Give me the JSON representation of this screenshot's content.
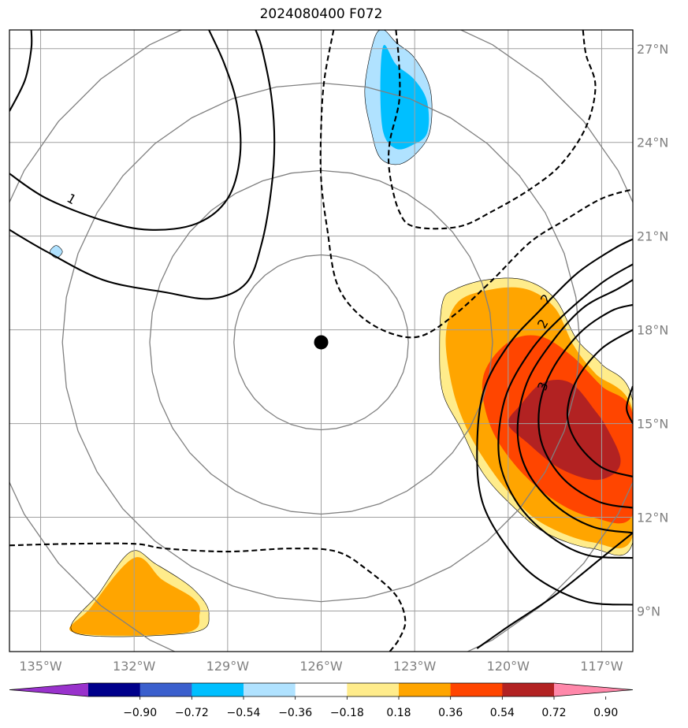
{
  "title": "2024080400 F072",
  "map": {
    "lon_range": [
      -136.0,
      -116.0
    ],
    "lat_range": [
      7.7,
      27.6
    ],
    "lon_ticks": [
      {
        "value": -135,
        "label": "135°W"
      },
      {
        "value": -132,
        "label": "132°W"
      },
      {
        "value": -129,
        "label": "129°W"
      },
      {
        "value": -126,
        "label": "126°W"
      },
      {
        "value": -123,
        "label": "123°W"
      },
      {
        "value": -120,
        "label": "120°W"
      },
      {
        "value": -117,
        "label": "117°W"
      }
    ],
    "lat_ticks": [
      {
        "value": 9,
        "label": "9°N"
      },
      {
        "value": 12,
        "label": "12°N"
      },
      {
        "value": 15,
        "label": "15°N"
      },
      {
        "value": 18,
        "label": "18°N"
      },
      {
        "value": 21,
        "label": "21°N"
      },
      {
        "value": 24,
        "label": "24°N"
      },
      {
        "value": 27,
        "label": "27°N"
      }
    ],
    "gridlines": true,
    "center": {
      "lon": -126.0,
      "lat": 17.6
    },
    "range_rings_deg": [
      2.8,
      5.5,
      8.3,
      11.0
    ],
    "contour_labels": [
      {
        "text": "1",
        "lon": -134.0,
        "lat": 22.2,
        "rotate": 30
      },
      {
        "text": "2",
        "lon": -118.8,
        "lat": 19.0,
        "rotate": -60
      },
      {
        "text": "2",
        "lon": -118.9,
        "lat": 18.2,
        "rotate": -60
      },
      {
        "text": "3",
        "lon": -118.9,
        "lat": 16.2,
        "rotate": -70
      }
    ]
  },
  "colorbar": {
    "ticks": [
      "−0.90",
      "−0.72",
      "−0.54",
      "−0.36",
      "−0.18",
      "0.18",
      "0.36",
      "0.54",
      "0.72",
      "0.90"
    ],
    "colors": [
      "#9932cc",
      "#00008b",
      "#3a5fcd",
      "#00bfff",
      "#b0e2ff",
      "#ffffff",
      "#ffec8b",
      "#ffa500",
      "#ff4500",
      "#b22222",
      "#ff88aa"
    ],
    "extend": "both"
  },
  "fields": {
    "shading": [
      {
        "color": "#b0e2ff",
        "points": [
          [
            -124.3,
            27.3
          ],
          [
            -124.0,
            27.6
          ],
          [
            -123.6,
            27.2
          ],
          [
            -123.0,
            26.7
          ],
          [
            -122.5,
            25.7
          ],
          [
            -122.5,
            24.4
          ],
          [
            -122.9,
            23.7
          ],
          [
            -123.5,
            23.3
          ],
          [
            -124.1,
            23.5
          ],
          [
            -124.4,
            24.4
          ],
          [
            -124.6,
            25.7
          ]
        ]
      },
      {
        "color": "#00bfff",
        "points": [
          [
            -124.0,
            27.1
          ],
          [
            -123.6,
            26.5
          ],
          [
            -123.0,
            26.0
          ],
          [
            -122.6,
            25.3
          ],
          [
            -122.6,
            24.3
          ],
          [
            -123.1,
            23.9
          ],
          [
            -123.6,
            23.8
          ],
          [
            -124.0,
            24.3
          ],
          [
            -124.1,
            25.7
          ]
        ]
      },
      {
        "color": "#b0e2ff",
        "points": [
          [
            -134.7,
            20.5
          ],
          [
            -134.5,
            20.7
          ],
          [
            -134.3,
            20.5
          ],
          [
            -134.5,
            20.3
          ]
        ]
      },
      {
        "color": "#ffec8b",
        "points": [
          [
            -121.7,
            19.3
          ],
          [
            -120.7,
            19.6
          ],
          [
            -119.5,
            19.6
          ],
          [
            -118.5,
            19.0
          ],
          [
            -117.8,
            17.7
          ],
          [
            -117.0,
            16.9
          ],
          [
            -116.0,
            15.7
          ],
          [
            -116.0,
            11.2
          ],
          [
            -117.3,
            11.0
          ],
          [
            -118.8,
            11.5
          ],
          [
            -119.8,
            12.3
          ],
          [
            -120.8,
            13.4
          ],
          [
            -121.5,
            14.8
          ],
          [
            -122.1,
            16.0
          ],
          [
            -122.2,
            17.5
          ],
          [
            -122.1,
            18.9
          ]
        ]
      },
      {
        "color": "#ffa500",
        "points": [
          [
            -121.6,
            18.9
          ],
          [
            -120.5,
            19.3
          ],
          [
            -119.4,
            19.3
          ],
          [
            -118.5,
            18.7
          ],
          [
            -117.9,
            17.5
          ],
          [
            -117.2,
            16.6
          ],
          [
            -116.0,
            15.4
          ],
          [
            -116.0,
            11.4
          ],
          [
            -117.3,
            11.2
          ],
          [
            -118.9,
            11.8
          ],
          [
            -119.9,
            12.7
          ],
          [
            -120.8,
            13.9
          ],
          [
            -121.4,
            15.0
          ],
          [
            -121.8,
            16.2
          ],
          [
            -122.0,
            17.8
          ]
        ]
      },
      {
        "color": "#ff4500",
        "points": [
          [
            -120.8,
            16.5
          ],
          [
            -120.0,
            17.6
          ],
          [
            -119.0,
            17.8
          ],
          [
            -118.0,
            17.2
          ],
          [
            -117.0,
            16.2
          ],
          [
            -116.0,
            15.3
          ],
          [
            -116.0,
            12.1
          ],
          [
            -117.3,
            12.0
          ],
          [
            -118.6,
            12.6
          ],
          [
            -119.8,
            13.7
          ],
          [
            -120.6,
            15.0
          ]
        ]
      },
      {
        "color": "#b22222",
        "points": [
          [
            -119.6,
            15.6
          ],
          [
            -118.9,
            16.3
          ],
          [
            -118.0,
            16.3
          ],
          [
            -117.2,
            15.4
          ],
          [
            -116.8,
            14.8
          ],
          [
            -116.4,
            13.9
          ],
          [
            -116.6,
            13.4
          ],
          [
            -117.3,
            13.2
          ],
          [
            -118.4,
            13.6
          ],
          [
            -119.4,
            14.4
          ],
          [
            -120.0,
            15.0
          ]
        ]
      },
      {
        "color": "#ffec8b",
        "points": [
          [
            -133.9,
            8.3
          ],
          [
            -133.1,
            9.6
          ],
          [
            -132.1,
            10.9
          ],
          [
            -131.3,
            10.5
          ],
          [
            -130.1,
            9.7
          ],
          [
            -129.6,
            8.9
          ],
          [
            -130.2,
            8.3
          ]
        ]
      },
      {
        "color": "#ffa500",
        "points": [
          [
            -133.9,
            8.3
          ],
          [
            -133.4,
            9.1
          ],
          [
            -132.0,
            10.7
          ],
          [
            -131.1,
            10.0
          ],
          [
            -130.1,
            9.4
          ],
          [
            -129.9,
            8.9
          ],
          [
            -130.4,
            8.3
          ]
        ]
      }
    ],
    "solid_contours": [
      [
        [
          -136.0,
          21.2
        ],
        [
          -134.8,
          20.5
        ],
        [
          -133.0,
          19.6
        ],
        [
          -131.0,
          19.2
        ],
        [
          -129.5,
          19.0
        ],
        [
          -128.4,
          19.5
        ],
        [
          -127.9,
          20.8
        ],
        [
          -127.6,
          22.5
        ],
        [
          -127.5,
          24.0
        ],
        [
          -127.6,
          25.5
        ],
        [
          -127.9,
          27.0
        ],
        [
          -128.1,
          27.6
        ]
      ],
      [
        [
          -136.0,
          23.0
        ],
        [
          -134.8,
          22.2
        ],
        [
          -133.0,
          21.5
        ],
        [
          -131.5,
          21.2
        ],
        [
          -130.0,
          21.4
        ],
        [
          -129.0,
          22.2
        ],
        [
          -128.6,
          23.6
        ],
        [
          -128.7,
          25.2
        ],
        [
          -129.1,
          26.5
        ],
        [
          -129.6,
          27.6
        ]
      ],
      [
        [
          -136.0,
          25.0
        ],
        [
          -135.5,
          26.0
        ],
        [
          -135.3,
          27.0
        ],
        [
          -135.3,
          27.6
        ]
      ],
      [
        [
          -121.0,
          7.8
        ],
        [
          -120.0,
          8.5
        ],
        [
          -118.5,
          9.5
        ],
        [
          -117.0,
          10.7
        ],
        [
          -116.0,
          11.5
        ]
      ],
      [
        [
          -116.0,
          9.2
        ],
        [
          -117.5,
          9.3
        ],
        [
          -119.0,
          10.0
        ],
        [
          -120.0,
          11.0
        ],
        [
          -120.8,
          12.4
        ],
        [
          -121.0,
          14.0
        ],
        [
          -120.8,
          16.0
        ],
        [
          -120.0,
          17.5
        ],
        [
          -119.0,
          18.6
        ],
        [
          -117.8,
          19.8
        ],
        [
          -116.6,
          20.6
        ],
        [
          -116.0,
          20.9
        ]
      ],
      [
        [
          -116.0,
          10.7
        ],
        [
          -117.5,
          10.8
        ],
        [
          -118.8,
          11.5
        ],
        [
          -119.8,
          12.6
        ],
        [
          -120.3,
          14.0
        ],
        [
          -120.1,
          15.8
        ],
        [
          -119.3,
          17.3
        ],
        [
          -118.3,
          18.4
        ],
        [
          -117.0,
          19.5
        ],
        [
          -116.0,
          20.1
        ]
      ],
      [
        [
          -116.0,
          11.5
        ],
        [
          -117.3,
          11.7
        ],
        [
          -118.5,
          12.4
        ],
        [
          -119.4,
          13.5
        ],
        [
          -119.7,
          14.8
        ],
        [
          -119.4,
          16.3
        ],
        [
          -118.6,
          17.6
        ],
        [
          -117.6,
          18.7
        ],
        [
          -116.5,
          19.3
        ],
        [
          -116.0,
          19.6
        ]
      ],
      [
        [
          -116.0,
          12.3
        ],
        [
          -117.1,
          12.5
        ],
        [
          -118.2,
          13.2
        ],
        [
          -118.9,
          14.3
        ],
        [
          -119.0,
          15.5
        ],
        [
          -118.6,
          16.7
        ],
        [
          -117.7,
          17.9
        ],
        [
          -116.7,
          18.6
        ],
        [
          -116.0,
          18.8
        ]
      ],
      [
        [
          -116.0,
          13.3
        ],
        [
          -117.0,
          13.6
        ],
        [
          -117.8,
          14.4
        ],
        [
          -118.1,
          15.3
        ],
        [
          -117.8,
          16.4
        ],
        [
          -117.0,
          17.4
        ],
        [
          -116.0,
          18.0
        ]
      ],
      [
        [
          -116.0,
          15.0
        ],
        [
          -116.2,
          15.5
        ],
        [
          -116.0,
          16.2
        ]
      ]
    ],
    "dashed_contours": [
      [
        [
          -136.0,
          11.1
        ],
        [
          -134.0,
          11.15
        ],
        [
          -132.0,
          11.15
        ],
        [
          -131.0,
          11.0
        ],
        [
          -129.0,
          10.9
        ],
        [
          -127.0,
          11.0
        ],
        [
          -125.5,
          10.9
        ],
        [
          -124.5,
          10.3
        ],
        [
          -123.6,
          9.5
        ],
        [
          -123.3,
          8.7
        ],
        [
          -123.5,
          8.1
        ],
        [
          -123.8,
          7.7
        ]
      ],
      [
        [
          -125.6,
          27.6
        ],
        [
          -125.9,
          26.0
        ],
        [
          -126.0,
          24.5
        ],
        [
          -126.0,
          22.8
        ],
        [
          -125.8,
          21.2
        ],
        [
          -125.5,
          19.5
        ],
        [
          -124.8,
          18.5
        ],
        [
          -123.8,
          17.9
        ],
        [
          -122.8,
          17.8
        ],
        [
          -121.7,
          18.5
        ],
        [
          -120.5,
          19.6
        ],
        [
          -119.3,
          20.8
        ],
        [
          -118.2,
          21.5
        ],
        [
          -117.0,
          22.2
        ],
        [
          -116.0,
          22.5
        ]
      ],
      [
        [
          -123.6,
          27.6
        ],
        [
          -123.5,
          26.5
        ],
        [
          -123.5,
          25.3
        ],
        [
          -123.8,
          24.0
        ],
        [
          -123.8,
          23.0
        ],
        [
          -123.5,
          21.8
        ],
        [
          -123.0,
          21.3
        ],
        [
          -121.6,
          21.3
        ],
        [
          -120.5,
          21.8
        ],
        [
          -119.3,
          22.5
        ],
        [
          -118.3,
          23.3
        ],
        [
          -117.5,
          24.5
        ],
        [
          -117.2,
          25.8
        ],
        [
          -117.5,
          26.8
        ],
        [
          -117.6,
          27.6
        ]
      ]
    ]
  }
}
